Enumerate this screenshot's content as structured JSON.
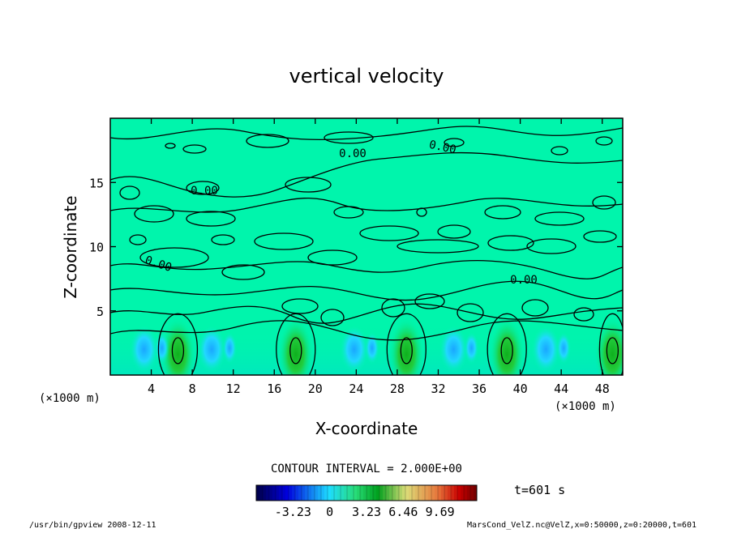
{
  "chart_data": {
    "type": "heatmap",
    "title": "vertical velocity",
    "xlabel": "X-coordinate",
    "ylabel": "Z-coordinate",
    "x_unit": "(×1000 m)",
    "y_unit": "(×1000 m)",
    "xlim": [
      0,
      50
    ],
    "ylim": [
      0,
      20
    ],
    "x_ticks": [
      "4",
      "8",
      "12",
      "16",
      "20",
      "24",
      "28",
      "32",
      "36",
      "40",
      "44",
      "48"
    ],
    "y_ticks": [
      "5",
      "10",
      "15"
    ],
    "contour_interval_label": "CONTOUR INTERVAL = 2.000E+00",
    "contour_labels": [
      "0.00",
      "0.00",
      "0.00",
      "0.00",
      "0.00"
    ],
    "colorbar": {
      "ticks": [
        "-3.23",
        "0",
        "3.23",
        "6.46",
        "9.69"
      ],
      "tick_values": [
        -3.23,
        0,
        3.23,
        6.46,
        9.69
      ],
      "range": [
        -6.46,
        12.92
      ]
    },
    "updraft_centers_x": [
      6.6,
      18.1,
      28.9,
      38.7,
      49.0
    ],
    "downdraft_centers_x": [
      3.3,
      9.9,
      23.8,
      33.5,
      42.5
    ],
    "time_label": "t=601 s",
    "colors": {
      "background": "#00f5ac",
      "updraft": "#1cc82c",
      "downdraft": "#12bcff"
    }
  },
  "footer": {
    "left": "/usr/bin/gpview   2008-12-11",
    "right": "MarsCond_VelZ.nc@VelZ,x=0:50000,z=0:20000,t=601"
  }
}
